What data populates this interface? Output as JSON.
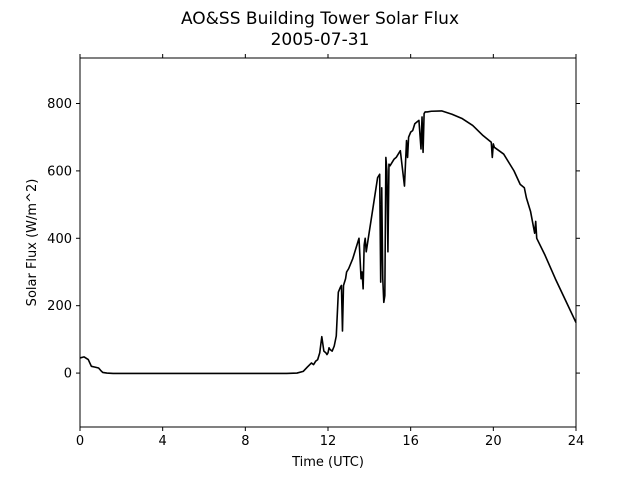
{
  "chart_data": {
    "type": "line",
    "title": "AO&SS Building Tower Solar Flux",
    "subtitle": "2005-07-31",
    "xlabel": "Time (UTC)",
    "ylabel": "Solar Flux (W/m^2)",
    "xlim": [
      0,
      24
    ],
    "ylim": [
      -160,
      935
    ],
    "x_ticks": [
      0,
      4,
      8,
      12,
      16,
      20,
      24
    ],
    "y_ticks": [
      0,
      200,
      400,
      600,
      800
    ],
    "grid": false,
    "series": [
      {
        "color": "#000000",
        "x": [
          0,
          0.2,
          0.4,
          0.55,
          0.7,
          0.9,
          1.0,
          1.1,
          1.3,
          1.6,
          2.0,
          3,
          4,
          5,
          6,
          7,
          8,
          9,
          10,
          10.5,
          10.8,
          11.0,
          11.2,
          11.3,
          11.4,
          11.5,
          11.6,
          11.7,
          11.8,
          11.9,
          11.95,
          12.0,
          12.05,
          12.1,
          12.2,
          12.3,
          12.4,
          12.5,
          12.6,
          12.65,
          12.7,
          12.75,
          12.8,
          12.85,
          12.9,
          13.0,
          13.2,
          13.4,
          13.5,
          13.6,
          13.65,
          13.7,
          13.75,
          13.8,
          13.85,
          13.9,
          14.0,
          14.1,
          14.2,
          14.3,
          14.4,
          14.5,
          14.55,
          14.6,
          14.65,
          14.7,
          14.75,
          14.8,
          14.85,
          14.9,
          14.95,
          15.0,
          15.1,
          15.2,
          15.3,
          15.5,
          15.7,
          15.8,
          15.85,
          15.9,
          16.0,
          16.1,
          16.2,
          16.3,
          16.4,
          16.5,
          16.55,
          16.6,
          16.65,
          16.7,
          16.8,
          17.0,
          17.5,
          18.0,
          18.5,
          19.0,
          19.5,
          19.9,
          19.95,
          20.0,
          20.05,
          20.5,
          21.0,
          21.3,
          21.5,
          21.6,
          21.8,
          22.0,
          22.05,
          22.1,
          22.5,
          23.0,
          23.5,
          24.0
        ],
        "values": [
          45,
          48,
          40,
          20,
          18,
          15,
          8,
          2,
          0,
          -1,
          -1,
          -1,
          -1,
          -1,
          -1,
          -1,
          -1,
          -1,
          -1,
          0,
          5,
          18,
          30,
          25,
          35,
          40,
          60,
          108,
          65,
          60,
          55,
          60,
          75,
          70,
          65,
          80,
          110,
          240,
          255,
          260,
          125,
          260,
          270,
          280,
          300,
          310,
          340,
          380,
          400,
          280,
          300,
          250,
          380,
          400,
          360,
          380,
          420,
          460,
          500,
          540,
          580,
          590,
          270,
          550,
          280,
          210,
          230,
          640,
          600,
          360,
          620,
          615,
          625,
          635,
          640,
          660,
          555,
          690,
          640,
          700,
          715,
          720,
          740,
          745,
          750,
          665,
          760,
          655,
          770,
          775,
          775,
          777,
          778,
          768,
          755,
          735,
          705,
          685,
          640,
          680,
          670,
          650,
          600,
          560,
          550,
          520,
          480,
          415,
          450,
          400,
          350,
          280,
          215,
          150
        ]
      }
    ]
  }
}
